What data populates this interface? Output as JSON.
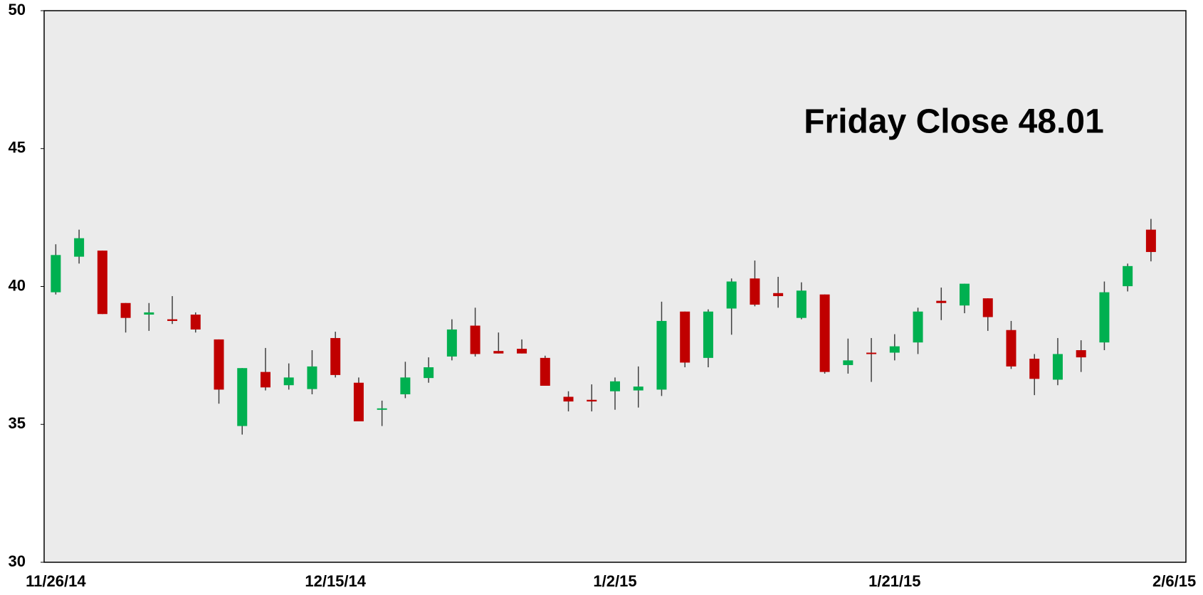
{
  "chart_data": {
    "type": "candlestick",
    "annotation": "Friday Close 48.01",
    "categories": [
      "11/26/14",
      null,
      null,
      null,
      null,
      null,
      null,
      null,
      null,
      null,
      null,
      null,
      "12/15/14",
      null,
      null,
      null,
      null,
      null,
      null,
      null,
      null,
      null,
      null,
      null,
      "1/2/15",
      null,
      null,
      null,
      null,
      null,
      null,
      null,
      null,
      null,
      null,
      null,
      "1/21/15",
      null,
      null,
      null,
      null,
      null,
      null,
      null,
      null,
      null,
      null,
      null,
      "2/6/15"
    ],
    "open": [
      39.79,
      41.08,
      41.3,
      39.4,
      38.98,
      38.81,
      38.98,
      38.08,
      34.94,
      36.9,
      36.42,
      36.28,
      38.13,
      36.51,
      35.53,
      36.09,
      36.68,
      37.46,
      38.58,
      37.66,
      37.74,
      37.41,
      36.0,
      35.89,
      36.2,
      36.23,
      36.26,
      39.09,
      37.41,
      39.2,
      40.29,
      39.76,
      38.86,
      39.71,
      37.15,
      37.6,
      37.6,
      37.97,
      39.48,
      39.31,
      39.57,
      38.42,
      37.38,
      36.62,
      37.69,
      37.97,
      40.01,
      42.06,
      null
    ],
    "high": [
      41.53,
      42.06,
      41.3,
      39.4,
      39.4,
      39.65,
      39.06,
      38.08,
      37.04,
      37.77,
      37.21,
      37.69,
      38.36,
      36.7,
      35.86,
      37.27,
      37.43,
      38.81,
      39.23,
      38.33,
      38.08,
      37.49,
      36.2,
      36.45,
      36.7,
      37.1,
      39.45,
      39.09,
      39.17,
      40.29,
      40.94,
      40.35,
      40.15,
      39.71,
      38.11,
      38.13,
      38.27,
      39.23,
      39.96,
      40.1,
      39.57,
      38.75,
      37.55,
      38.13,
      38.05,
      40.18,
      40.83,
      42.45,
      null
    ],
    "low": [
      39.71,
      40.83,
      39.0,
      38.33,
      38.39,
      38.64,
      38.33,
      35.75,
      34.63,
      36.23,
      36.26,
      36.09,
      36.7,
      35.11,
      34.94,
      35.95,
      36.51,
      37.32,
      37.46,
      37.57,
      37.57,
      36.4,
      35.47,
      35.47,
      35.53,
      35.61,
      36.03,
      37.07,
      37.07,
      38.25,
      39.28,
      39.23,
      38.81,
      36.84,
      36.84,
      36.54,
      37.32,
      37.55,
      38.78,
      39.03,
      38.39,
      37.01,
      36.06,
      36.42,
      36.9,
      37.69,
      39.82,
      40.91,
      null
    ],
    "close": [
      41.14,
      41.75,
      39.0,
      38.86,
      39.06,
      38.75,
      38.44,
      36.26,
      37.04,
      36.34,
      36.7,
      37.1,
      36.79,
      35.11,
      35.58,
      36.7,
      37.07,
      38.44,
      37.55,
      37.57,
      37.57,
      36.4,
      35.83,
      35.83,
      36.56,
      36.37,
      38.75,
      37.24,
      39.09,
      40.18,
      39.34,
      39.65,
      39.85,
      36.9,
      37.32,
      37.55,
      37.83,
      39.09,
      39.4,
      40.1,
      38.89,
      37.1,
      36.65,
      37.55,
      37.43,
      39.79,
      40.74,
      41.25,
      null
    ],
    "up_color": "#00b050",
    "down_color": "#c00000",
    "wick_color": "#404040",
    "annotation_color": "#f05a28",
    "ylim": [
      30,
      50
    ],
    "yticks": [
      30,
      35,
      40,
      45,
      50
    ],
    "grid": false
  }
}
